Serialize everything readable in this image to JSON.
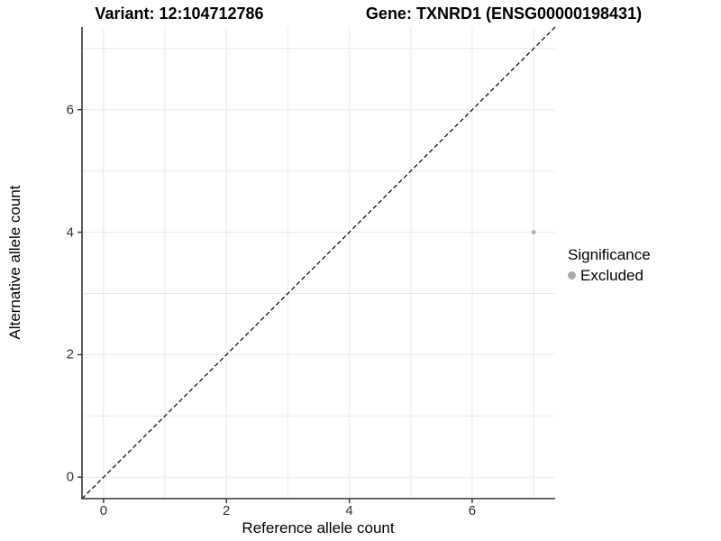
{
  "chart_data": {
    "type": "scatter",
    "title_left": "Variant: 12:104712786",
    "title_right": "Gene: TXNRD1 (ENSG00000198431)",
    "xlabel": "Reference allele count",
    "ylabel": "Alternative allele count",
    "xlim": [
      -0.35,
      7.35
    ],
    "ylim": [
      -0.35,
      7.35
    ],
    "x_ticks": [
      0,
      2,
      4,
      6
    ],
    "y_ticks": [
      0,
      2,
      4,
      6
    ],
    "grid_x": [
      0,
      1,
      2,
      3,
      4,
      5,
      6,
      7
    ],
    "grid_y": [
      0,
      1,
      2,
      3,
      4,
      5,
      6,
      7
    ],
    "grid_on": true,
    "points": [
      {
        "x": 7,
        "y": 4,
        "significance": "Excluded"
      }
    ],
    "reference_line": {
      "type": "identity",
      "style": "dashed",
      "color": "#000000"
    },
    "legend": {
      "title": "Significance",
      "position": "right",
      "items": [
        {
          "label": "Excluded",
          "color": "#aaaaaa"
        }
      ]
    },
    "colors": {
      "point": "#b0b0b0",
      "grid": "#e8e8e8",
      "axis": "#333333",
      "tick_text": "#303030"
    }
  }
}
